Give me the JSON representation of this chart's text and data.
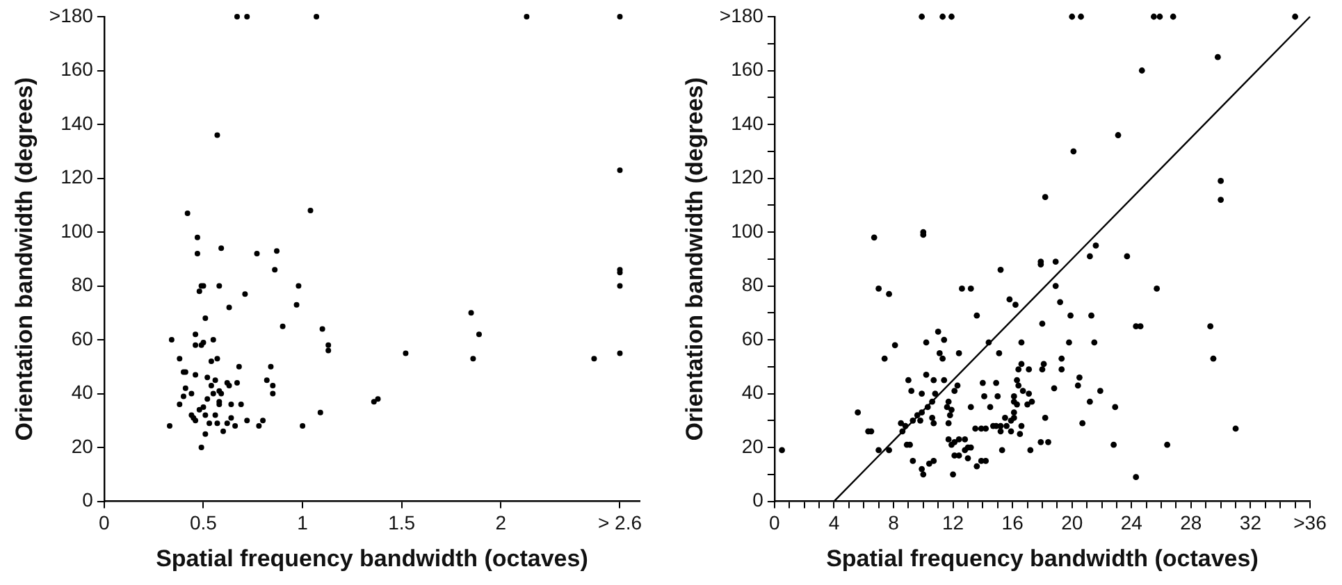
{
  "chart_data": [
    {
      "type": "scatter",
      "xlabel": "Spatial frequency bandwidth (octaves)",
      "ylabel": "Orientation bandwidth (degrees)",
      "marker": "circle",
      "grid": false,
      "xlim": [
        0,
        2.7
      ],
      "ylim": [
        0,
        180
      ],
      "xticks": [
        0,
        0.5,
        1,
        1.5,
        2,
        {
          "value": 2.6,
          "label": "> 2.6"
        }
      ],
      "yticks": [
        0,
        20,
        40,
        60,
        80,
        100,
        120,
        140,
        160,
        {
          "value": 180,
          "label": ">180"
        }
      ],
      "series": [
        {
          "color": "#000000",
          "x": [
            0.67,
            0.72,
            1.07,
            2.13,
            2.6,
            0.57,
            2.6,
            0.42,
            1.04,
            0.47,
            0.47,
            0.59,
            0.77,
            0.87,
            0.86,
            2.6,
            2.6,
            2.6,
            0.49,
            0.5,
            0.48,
            0.58,
            0.98,
            0.71,
            0.97,
            0.63,
            0.51,
            0.9,
            1.1,
            0.34,
            0.46,
            0.55,
            0.46,
            0.49,
            0.5,
            1.13,
            1.13,
            1.52,
            2.6,
            2.47,
            1.86,
            1.89,
            1.85,
            0.57,
            0.54,
            0.38,
            0.4,
            0.41,
            0.68,
            0.84,
            0.46,
            0.52,
            0.56,
            0.62,
            0.63,
            0.67,
            0.82,
            0.85,
            0.85,
            0.41,
            0.54,
            0.58,
            0.59,
            0.44,
            0.4,
            0.55,
            0.52,
            0.38,
            0.58,
            0.58,
            0.64,
            0.69,
            1.36,
            1.38,
            0.48,
            0.5,
            0.51,
            0.44,
            0.45,
            0.46,
            0.56,
            0.72,
            0.8,
            1.09,
            0.33,
            0.53,
            0.57,
            0.62,
            0.64,
            0.66,
            0.78,
            1.0,
            0.6,
            0.51,
            0.49
          ],
          "values": [
            180,
            180,
            180,
            180,
            180,
            136,
            123,
            107,
            108,
            98,
            92,
            94,
            92,
            93,
            86,
            86,
            85,
            80,
            80,
            80,
            78,
            80,
            80,
            77,
            73,
            72,
            68,
            65,
            64,
            60,
            62,
            60,
            58,
            58,
            59,
            58,
            56,
            55,
            55,
            53,
            53,
            62,
            70,
            53,
            52,
            53,
            48,
            48,
            50,
            50,
            47,
            46,
            45,
            44,
            43,
            44,
            45,
            43,
            40,
            42,
            43,
            41,
            40,
            40,
            39,
            40,
            38,
            36,
            37,
            36,
            36,
            36,
            37,
            38,
            34,
            35,
            32,
            32,
            31,
            30,
            32,
            30,
            30,
            33,
            28,
            29,
            29,
            29,
            31,
            28,
            28,
            28,
            26,
            25,
            20
          ]
        }
      ]
    },
    {
      "type": "scatter",
      "xlabel": "Spatial frequency bandwidth (octaves)",
      "ylabel": "Orientation bandwidth (degrees)",
      "grid": false,
      "xlim": [
        0,
        36
      ],
      "ylim": [
        0,
        180
      ],
      "xticks": [
        0,
        {
          "value": 1,
          "label": null
        },
        {
          "value": 2,
          "label": null
        },
        {
          "value": 3,
          "label": null
        },
        4,
        {
          "value": 5,
          "label": null
        },
        {
          "value": 6,
          "label": null
        },
        {
          "value": 7,
          "label": null
        },
        8,
        {
          "value": 9,
          "label": null
        },
        {
          "value": 10,
          "label": null
        },
        {
          "value": 11,
          "label": null
        },
        12,
        {
          "value": 13,
          "label": null
        },
        {
          "value": 14,
          "label": null
        },
        {
          "value": 15,
          "label": null
        },
        16,
        {
          "value": 17,
          "label": null
        },
        {
          "value": 18,
          "label": null
        },
        {
          "value": 19,
          "label": null
        },
        20,
        {
          "value": 21,
          "label": null
        },
        {
          "value": 22,
          "label": null
        },
        {
          "value": 23,
          "label": null
        },
        24,
        {
          "value": 25,
          "label": null
        },
        {
          "value": 26,
          "label": null
        },
        {
          "value": 27,
          "label": null
        },
        28,
        {
          "value": 29,
          "label": null
        },
        {
          "value": 30,
          "label": null
        },
        {
          "value": 31,
          "label": null
        },
        32,
        {
          "value": 33,
          "label": null
        },
        {
          "value": 34,
          "label": null
        },
        {
          "value": 35,
          "label": null
        },
        {
          "value": 36,
          "label": ">36"
        }
      ],
      "yticks": [
        0,
        {
          "value": 10,
          "label": null
        },
        20,
        {
          "value": 30,
          "label": null
        },
        40,
        {
          "value": 50,
          "label": null
        },
        60,
        {
          "value": 70,
          "label": null
        },
        80,
        {
          "value": 90,
          "label": null
        },
        100,
        {
          "value": 110,
          "label": null
        },
        120,
        {
          "value": 130,
          "label": null
        },
        140,
        {
          "value": 150,
          "label": null
        },
        160,
        {
          "value": 170,
          "label": null
        },
        {
          "value": 180,
          "label": ">180"
        }
      ],
      "series": [
        {
          "color": "#000000",
          "marker": "circle",
          "x": [
            9.9,
            11.3,
            11.9,
            20.0,
            20.6,
            25.5,
            25.9,
            26.8,
            35,
            29.8,
            24.7,
            23.1,
            20.1,
            30,
            30,
            18.2,
            6.7,
            10,
            10,
            18.9,
            17.9,
            17.9,
            15.2,
            21.6,
            21.2,
            23.7,
            7,
            7.7,
            12.6,
            13.2,
            18.9,
            25.7,
            19.2,
            13.6,
            19.9,
            21.3,
            15.8,
            16.2,
            16.6,
            18,
            29.3,
            24.3,
            24.6,
            19.8,
            21.5,
            19.3,
            18.1,
            29.5,
            7.4,
            8.1,
            10.2,
            11,
            11.4,
            11.1,
            11.3,
            12.4,
            14.4,
            15.1,
            5.6,
            9,
            9.2,
            10.2,
            10.7,
            11.4,
            12.3,
            12.1,
            9.9,
            10.8,
            10.6,
            11.7,
            11.6,
            11.8,
            11.9,
            11.7,
            14,
            14.9,
            16.3,
            16.4,
            16.7,
            17.1,
            16.1,
            14.1,
            13.2,
            14.5,
            15,
            17,
            16.3,
            16.1,
            17.3,
            18,
            16.4,
            16.6,
            17.1,
            18.8,
            16.1,
            16.1,
            15.5,
            15.9,
            14.7,
            14.9,
            15.2,
            13.9,
            13.5,
            15.2,
            16.5,
            15.6,
            16.6,
            14.2,
            15.9,
            17.9,
            18.4,
            17.2,
            15.3,
            14.2,
            13.9,
            13.6,
            13,
            13,
            13.2,
            12.8,
            12.1,
            12.4,
            12.1,
            12.8,
            12.4,
            11.7,
            11.9,
            12,
            10.7,
            10.4,
            9.9,
            10,
            9.3,
            8.9,
            9.1,
            8.6,
            8.8,
            8.5,
            9.3,
            9.6,
            9.9,
            9.8,
            10.3,
            10.6,
            10.7,
            6.3,
            6.5,
            7,
            7.7,
            22.9,
            22.8,
            26.4,
            24.3,
            31,
            20.7,
            20.5,
            20.4,
            21.2,
            21.9,
            19.3,
            18.2,
            0.5
          ],
          "values": [
            180,
            180,
            180,
            180,
            180,
            180,
            180,
            180,
            180,
            165,
            160,
            136,
            130,
            119,
            112,
            113,
            98,
            100,
            99,
            89,
            89,
            88,
            86,
            95,
            91,
            91,
            79,
            77,
            79,
            79,
            80,
            79,
            74,
            69,
            69,
            69,
            75,
            73,
            59,
            66,
            65,
            65,
            65,
            59,
            59,
            53,
            51,
            53,
            53,
            58,
            59,
            63,
            60,
            55,
            53,
            55,
            59,
            55,
            33,
            45,
            41,
            47,
            45,
            45,
            43,
            41,
            40,
            40,
            37,
            37,
            35,
            32,
            34,
            29,
            44,
            44,
            45,
            43,
            41,
            40,
            39,
            39,
            35,
            35,
            39,
            36,
            36,
            37,
            37,
            49,
            49,
            51,
            49,
            42,
            33,
            31,
            31,
            30,
            28,
            28,
            28,
            27,
            27,
            26,
            25,
            28,
            28,
            27,
            26,
            22,
            22,
            19,
            19,
            15,
            15,
            13,
            16,
            20,
            20,
            19,
            17,
            17,
            22,
            23,
            23,
            23,
            21,
            10,
            15,
            14,
            12,
            10,
            15,
            21,
            21,
            26,
            28,
            29,
            30,
            32,
            33,
            30,
            35,
            31,
            29,
            26,
            26,
            19,
            19,
            35,
            21,
            21,
            9,
            27,
            29,
            46,
            43,
            37,
            41,
            49,
            31,
            19
          ]
        },
        {
          "type": "line",
          "color": "#000000",
          "x": [
            4,
            36
          ],
          "values": [
            0,
            180
          ]
        }
      ]
    }
  ]
}
